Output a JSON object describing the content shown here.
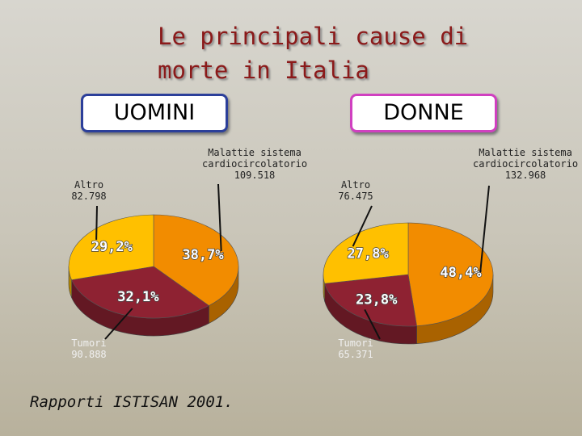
{
  "slide_title": [
    "Le principali cause di",
    "morte in Italia"
  ],
  "source": "Rapporti ISTISAN 2001.",
  "chart_data": [
    {
      "type": "pie",
      "title": "UOMINI",
      "categories": [
        "Malattie sistema cardiocircolatorio",
        "Tumori",
        "Altro"
      ],
      "values": [
        38.7,
        32.1,
        29.2
      ],
      "value_labels": [
        "38,7%",
        "32,1%",
        "29,2%"
      ],
      "counts": [
        {
          "value": 109518,
          "label": "109.518"
        },
        {
          "value": 90888,
          "label": "90.888"
        },
        {
          "value": 82798,
          "label": "82.798"
        }
      ],
      "colors": [
        "#f28c00",
        "#8e2232",
        "#ffc000"
      ]
    },
    {
      "type": "pie",
      "title": "DONNE",
      "categories": [
        "Malattie sistema cardiocircolatorio",
        "Tumori",
        "Altro"
      ],
      "values": [
        48.4,
        23.8,
        27.8
      ],
      "value_labels": [
        "48,4%",
        "23,8%",
        "27,8%"
      ],
      "counts": [
        {
          "value": 132968,
          "label": "132.968"
        },
        {
          "value": 65371,
          "label": "65.371"
        },
        {
          "value": 76475,
          "label": "76.475"
        }
      ],
      "colors": [
        "#f28c00",
        "#8e2232",
        "#ffc000"
      ]
    }
  ]
}
